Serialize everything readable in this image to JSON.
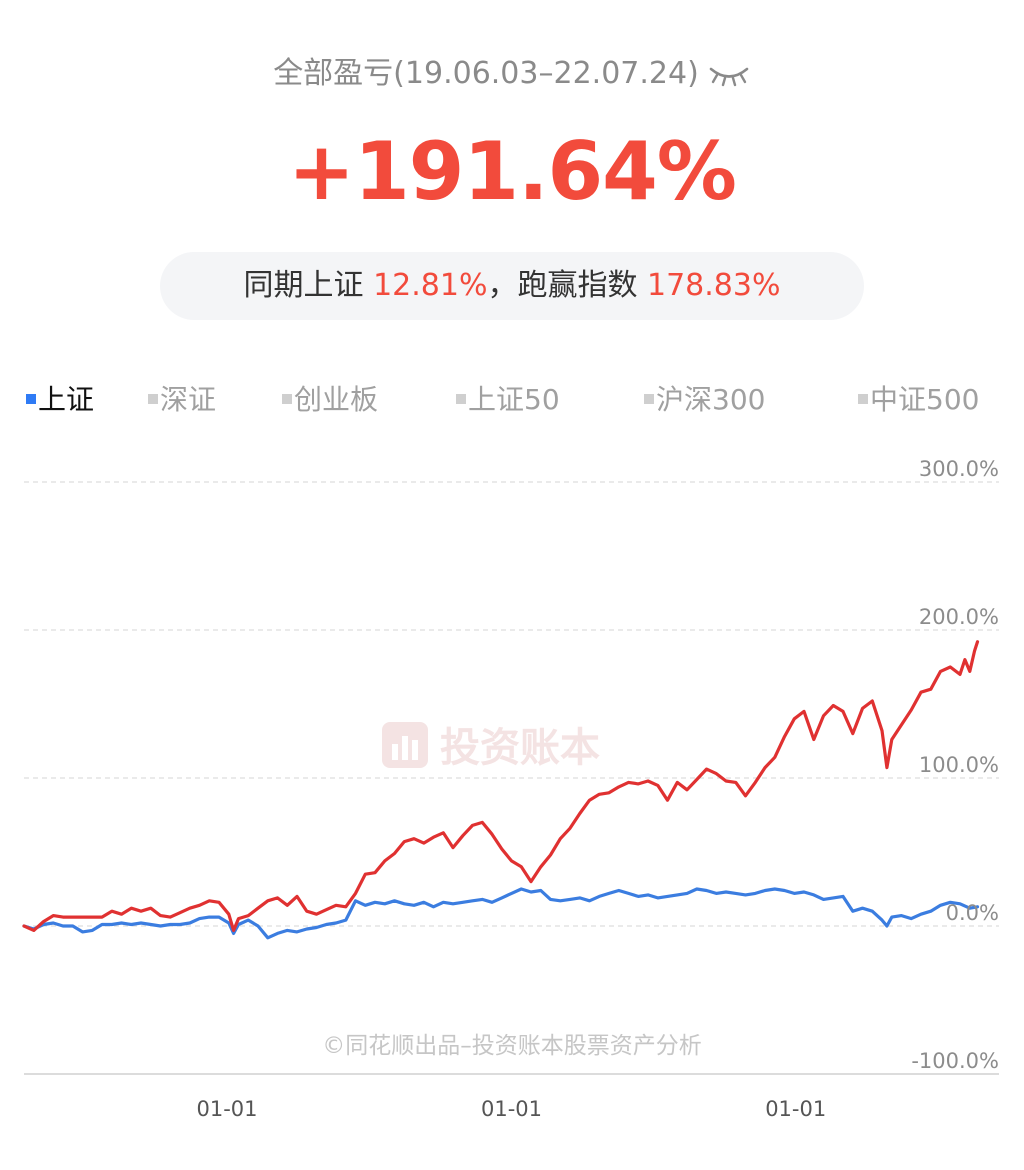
{
  "header": {
    "title": "全部盈亏(19.06.03–22.07.24)",
    "eye_icon": "eye-closed-icon"
  },
  "summary": {
    "total_return": "+191.64%",
    "compare_label": "同期上证",
    "compare_value": "12.81%",
    "beat_label": "，跑赢指数",
    "beat_value": "178.83%"
  },
  "index_tabs": [
    {
      "label": "上证",
      "active": true
    },
    {
      "label": "深证",
      "active": false
    },
    {
      "label": "创业板",
      "active": false
    },
    {
      "label": "上证50",
      "active": false
    },
    {
      "label": "沪深300",
      "active": false
    },
    {
      "label": "中证500",
      "active": false
    }
  ],
  "watermark": "投资账本",
  "credit": "©同花顺出品–投资账本股票资产分析",
  "colors": {
    "portfolio": "#e03131",
    "index": "#3b7de0",
    "accent_red": "#f24b3c"
  },
  "chart_data": {
    "type": "line",
    "title": "",
    "xlabel": "",
    "ylabel": "",
    "ylim": [
      -100,
      300
    ],
    "yticks": [
      300,
      200,
      100,
      0,
      -100
    ],
    "ytick_labels": [
      "300.0%",
      "200.0%",
      "100.0%",
      "0.0%",
      "-100.0%"
    ],
    "xticks": [
      0.2082,
      0.5,
      0.7915
    ],
    "xtick_labels": [
      "01-01",
      "01-01",
      "01-01"
    ],
    "grid": true,
    "series": [
      {
        "name": "",
        "color": "#e03131",
        "points": [
          [
            0,
            0
          ],
          [
            0.01,
            -3
          ],
          [
            0.02,
            3
          ],
          [
            0.03,
            7
          ],
          [
            0.04,
            6
          ],
          [
            0.05,
            6
          ],
          [
            0.06,
            6
          ],
          [
            0.08,
            6
          ],
          [
            0.09,
            10
          ],
          [
            0.1,
            8
          ],
          [
            0.11,
            12
          ],
          [
            0.12,
            10
          ],
          [
            0.13,
            12
          ],
          [
            0.14,
            7
          ],
          [
            0.15,
            6
          ],
          [
            0.16,
            9
          ],
          [
            0.17,
            12
          ],
          [
            0.18,
            14
          ],
          [
            0.19,
            17
          ],
          [
            0.2,
            16
          ],
          [
            0.21,
            8
          ],
          [
            0.215,
            -3
          ],
          [
            0.22,
            5
          ],
          [
            0.23,
            7
          ],
          [
            0.24,
            12
          ],
          [
            0.25,
            17
          ],
          [
            0.26,
            19
          ],
          [
            0.27,
            14
          ],
          [
            0.28,
            20
          ],
          [
            0.29,
            10
          ],
          [
            0.3,
            8
          ],
          [
            0.31,
            11
          ],
          [
            0.32,
            14
          ],
          [
            0.33,
            13
          ],
          [
            0.34,
            22
          ],
          [
            0.35,
            35
          ],
          [
            0.36,
            36
          ],
          [
            0.37,
            44
          ],
          [
            0.38,
            49
          ],
          [
            0.39,
            57
          ],
          [
            0.4,
            59
          ],
          [
            0.41,
            56
          ],
          [
            0.42,
            60
          ],
          [
            0.43,
            63
          ],
          [
            0.44,
            53
          ],
          [
            0.45,
            61
          ],
          [
            0.46,
            68
          ],
          [
            0.47,
            70
          ],
          [
            0.48,
            62
          ],
          [
            0.49,
            52
          ],
          [
            0.5,
            44
          ],
          [
            0.51,
            40
          ],
          [
            0.52,
            30
          ],
          [
            0.53,
            40
          ],
          [
            0.54,
            48
          ],
          [
            0.55,
            59
          ],
          [
            0.56,
            66
          ],
          [
            0.57,
            76
          ],
          [
            0.58,
            85
          ],
          [
            0.59,
            89
          ],
          [
            0.6,
            90
          ],
          [
            0.61,
            94
          ],
          [
            0.62,
            97
          ],
          [
            0.63,
            96
          ],
          [
            0.64,
            98
          ],
          [
            0.65,
            95
          ],
          [
            0.66,
            85
          ],
          [
            0.67,
            97
          ],
          [
            0.68,
            92
          ],
          [
            0.69,
            99
          ],
          [
            0.7,
            106
          ],
          [
            0.71,
            103
          ],
          [
            0.72,
            98
          ],
          [
            0.73,
            97
          ],
          [
            0.74,
            88
          ],
          [
            0.75,
            97
          ],
          [
            0.76,
            107
          ],
          [
            0.77,
            114
          ],
          [
            0.78,
            128
          ],
          [
            0.79,
            140
          ],
          [
            0.8,
            145
          ],
          [
            0.81,
            126
          ],
          [
            0.82,
            142
          ],
          [
            0.83,
            149
          ],
          [
            0.84,
            145
          ],
          [
            0.85,
            130
          ],
          [
            0.86,
            147
          ],
          [
            0.87,
            152
          ],
          [
            0.88,
            132
          ],
          [
            0.885,
            107
          ],
          [
            0.89,
            126
          ],
          [
            0.9,
            136
          ],
          [
            0.91,
            146
          ],
          [
            0.92,
            158
          ],
          [
            0.93,
            160
          ],
          [
            0.94,
            172
          ],
          [
            0.95,
            175
          ],
          [
            0.96,
            170
          ],
          [
            0.965,
            180
          ],
          [
            0.97,
            172
          ],
          [
            0.975,
            186
          ],
          [
            0.978,
            192
          ]
        ]
      },
      {
        "name": "",
        "color": "#3b7de0",
        "points": [
          [
            0,
            0
          ],
          [
            0.01,
            -2
          ],
          [
            0.02,
            1
          ],
          [
            0.03,
            2
          ],
          [
            0.04,
            0
          ],
          [
            0.05,
            0
          ],
          [
            0.06,
            -4
          ],
          [
            0.07,
            -3
          ],
          [
            0.08,
            1
          ],
          [
            0.09,
            1
          ],
          [
            0.1,
            2
          ],
          [
            0.11,
            1
          ],
          [
            0.12,
            2
          ],
          [
            0.13,
            1
          ],
          [
            0.14,
            0
          ],
          [
            0.15,
            1
          ],
          [
            0.16,
            1
          ],
          [
            0.17,
            2
          ],
          [
            0.18,
            5
          ],
          [
            0.19,
            6
          ],
          [
            0.2,
            6
          ],
          [
            0.21,
            2
          ],
          [
            0.215,
            -5
          ],
          [
            0.22,
            1
          ],
          [
            0.23,
            4
          ],
          [
            0.24,
            0
          ],
          [
            0.25,
            -8
          ],
          [
            0.26,
            -5
          ],
          [
            0.27,
            -3
          ],
          [
            0.28,
            -4
          ],
          [
            0.29,
            -2
          ],
          [
            0.3,
            -1
          ],
          [
            0.31,
            1
          ],
          [
            0.32,
            2
          ],
          [
            0.33,
            4
          ],
          [
            0.34,
            17
          ],
          [
            0.35,
            14
          ],
          [
            0.36,
            16
          ],
          [
            0.37,
            15
          ],
          [
            0.38,
            17
          ],
          [
            0.39,
            15
          ],
          [
            0.4,
            14
          ],
          [
            0.41,
            16
          ],
          [
            0.42,
            13
          ],
          [
            0.43,
            16
          ],
          [
            0.44,
            15
          ],
          [
            0.45,
            16
          ],
          [
            0.46,
            17
          ],
          [
            0.47,
            18
          ],
          [
            0.48,
            16
          ],
          [
            0.49,
            19
          ],
          [
            0.5,
            22
          ],
          [
            0.51,
            25
          ],
          [
            0.52,
            23
          ],
          [
            0.53,
            24
          ],
          [
            0.54,
            18
          ],
          [
            0.55,
            17
          ],
          [
            0.56,
            18
          ],
          [
            0.57,
            19
          ],
          [
            0.58,
            17
          ],
          [
            0.59,
            20
          ],
          [
            0.6,
            22
          ],
          [
            0.61,
            24
          ],
          [
            0.62,
            22
          ],
          [
            0.63,
            20
          ],
          [
            0.64,
            21
          ],
          [
            0.65,
            19
          ],
          [
            0.66,
            20
          ],
          [
            0.67,
            21
          ],
          [
            0.68,
            22
          ],
          [
            0.69,
            25
          ],
          [
            0.7,
            24
          ],
          [
            0.71,
            22
          ],
          [
            0.72,
            23
          ],
          [
            0.73,
            22
          ],
          [
            0.74,
            21
          ],
          [
            0.75,
            22
          ],
          [
            0.76,
            24
          ],
          [
            0.77,
            25
          ],
          [
            0.78,
            24
          ],
          [
            0.79,
            22
          ],
          [
            0.8,
            23
          ],
          [
            0.81,
            21
          ],
          [
            0.82,
            18
          ],
          [
            0.83,
            19
          ],
          [
            0.84,
            20
          ],
          [
            0.85,
            10
          ],
          [
            0.86,
            12
          ],
          [
            0.87,
            10
          ],
          [
            0.88,
            4
          ],
          [
            0.885,
            0
          ],
          [
            0.89,
            6
          ],
          [
            0.9,
            7
          ],
          [
            0.91,
            5
          ],
          [
            0.92,
            8
          ],
          [
            0.93,
            10
          ],
          [
            0.94,
            14
          ],
          [
            0.95,
            16
          ],
          [
            0.96,
            15
          ],
          [
            0.97,
            12
          ],
          [
            0.978,
            13
          ]
        ]
      }
    ]
  }
}
